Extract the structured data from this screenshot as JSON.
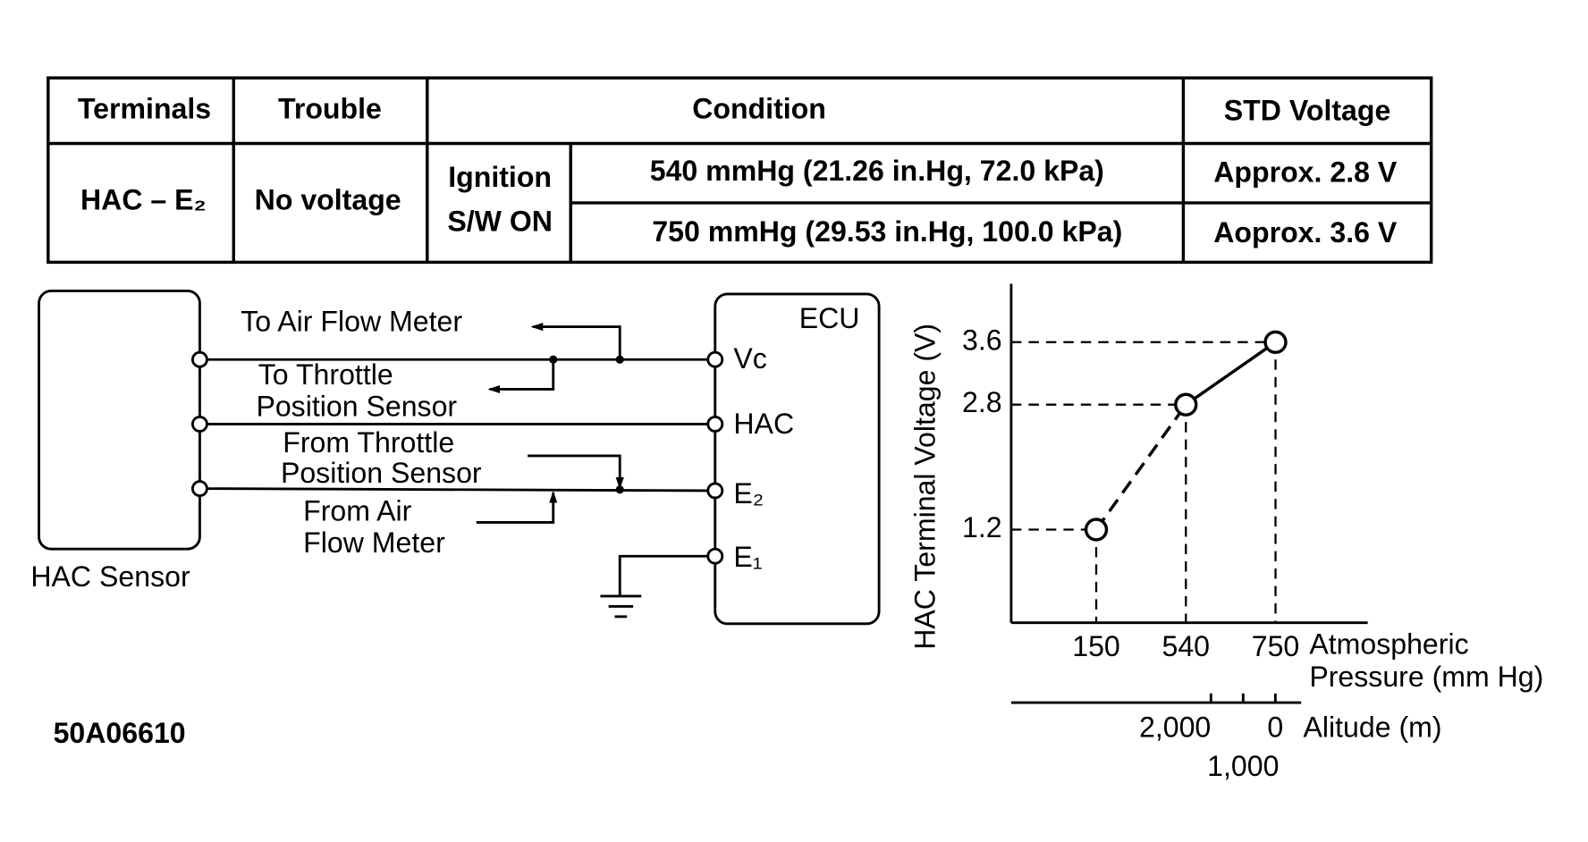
{
  "table": {
    "headers": [
      "Terminals",
      "Trouble",
      "Condition",
      "STD Voltage"
    ],
    "terminals": "HAC – E₂",
    "trouble": "No voltage",
    "condition": [
      "Ignition",
      "S/W ON"
    ],
    "rows": [
      [
        "540 mmHg (21.26 in.Hg, 72.0 kPa)",
        "Approx. 2.8 V"
      ],
      [
        "750 mmHg (29.53 in.Hg, 100.0 kPa)",
        "Aoprox. 3.6 V"
      ]
    ]
  },
  "diagram": {
    "sensor": "HAC Sensor",
    "ecu": "ECU",
    "terminals": [
      "Vc",
      "HAC",
      "E₂",
      "E₁"
    ],
    "to_air_flow_meter": "To Air Flow Meter",
    "to_tps": [
      "To Throttle",
      "Position Sensor"
    ],
    "from_tps": [
      "From Throttle",
      "Position Sensor"
    ],
    "from_afm": [
      "From Air",
      "Flow Meter"
    ]
  },
  "figure_id": "50A06610",
  "chart_data": {
    "type": "line",
    "y_label": "HAC Terminal Voltage (V)",
    "x_label": [
      "Atmospheric",
      "Pressure (mm Hg)"
    ],
    "categories": [
      "150",
      "540",
      "750"
    ],
    "values": [
      1.2,
      2.8,
      3.6
    ],
    "color": "#000000",
    "ylim": [
      0,
      4.2
    ],
    "yticks": [
      1.2,
      2.8,
      3.6
    ],
    "x2_label": "Alitude (m)",
    "x2lim": [
      8200,
      -800
    ],
    "x2ticks": [
      {
        "value": 2000,
        "label": "2,000"
      },
      {
        "value": 1000,
        "label": "1,000"
      },
      0
    ]
  }
}
